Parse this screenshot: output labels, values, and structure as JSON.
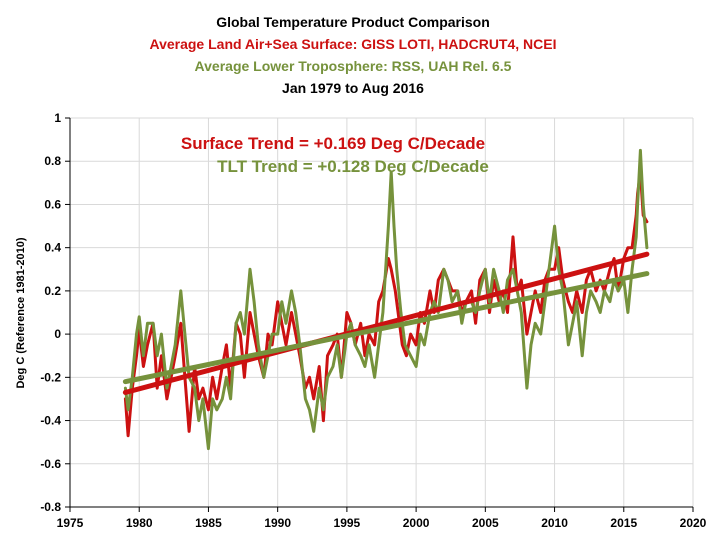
{
  "chart_data": {
    "type": "line",
    "title": "Global Temperature Product Comparison",
    "subtitle_surface": "Average Land Air+Sea Surface: GISS LOTI, HADCRUT4, NCEI",
    "subtitle_tlt": "Average Lower Troposphere: RSS, UAH Rel. 6.5",
    "date_range": "Jan 1979 to Aug 2016",
    "ylabel": "Deg C  (Reference 1981-2010)",
    "xlabel": "",
    "xlim": [
      1975,
      2020
    ],
    "ylim": [
      -0.8,
      1.0
    ],
    "x_ticks": [
      "1975",
      "1980",
      "1985",
      "1990",
      "1995",
      "2000",
      "2005",
      "2010",
      "2015",
      "2020"
    ],
    "y_ticks": [
      "-0.8",
      "-0.6",
      "-0.4",
      "-0.2",
      "0",
      "0.2",
      "0.4",
      "0.6",
      "0.8",
      "1"
    ],
    "grid": true,
    "annotations": {
      "surface_trend": "Surface Trend = +0.169 Deg C/Decade",
      "tlt_trend": "TLT Trend = +0.128 Deg C/Decade"
    },
    "series": [
      {
        "name": "Surface (GISS LOTI, HADCRUT4, NCEI)",
        "color": "#cc1111",
        "trend": {
          "x": [
            1979.0,
            2016.67
          ],
          "y": [
            -0.27,
            0.37
          ]
        },
        "x": [
          1979.0,
          1979.2,
          1979.5,
          1979.8,
          1980.0,
          1980.3,
          1980.6,
          1981.0,
          1981.3,
          1981.6,
          1982.0,
          1982.3,
          1982.6,
          1983.0,
          1983.3,
          1983.6,
          1984.0,
          1984.3,
          1984.6,
          1985.0,
          1985.3,
          1985.6,
          1986.0,
          1986.3,
          1986.6,
          1987.0,
          1987.3,
          1987.6,
          1988.0,
          1988.3,
          1988.6,
          1989.0,
          1989.3,
          1989.6,
          1990.0,
          1990.3,
          1990.6,
          1991.0,
          1991.3,
          1991.6,
          1992.0,
          1992.3,
          1992.6,
          1993.0,
          1993.3,
          1993.6,
          1994.0,
          1994.3,
          1994.6,
          1995.0,
          1995.3,
          1995.6,
          1996.0,
          1996.3,
          1996.6,
          1997.0,
          1997.3,
          1997.6,
          1998.0,
          1998.2,
          1998.5,
          1998.8,
          1999.0,
          1999.3,
          1999.6,
          2000.0,
          2000.3,
          2000.6,
          2001.0,
          2001.3,
          2001.6,
          2002.0,
          2002.3,
          2002.6,
          2003.0,
          2003.3,
          2003.6,
          2004.0,
          2004.3,
          2004.6,
          2005.0,
          2005.3,
          2005.6,
          2006.0,
          2006.3,
          2006.6,
          2007.0,
          2007.3,
          2007.6,
          2008.0,
          2008.3,
          2008.6,
          2009.0,
          2009.3,
          2009.6,
          2010.0,
          2010.3,
          2010.6,
          2011.0,
          2011.3,
          2011.6,
          2012.0,
          2012.3,
          2012.6,
          2013.0,
          2013.3,
          2013.6,
          2014.0,
          2014.3,
          2014.6,
          2015.0,
          2015.3,
          2015.6,
          2015.9,
          2016.0,
          2016.2,
          2016.4,
          2016.67
        ],
        "values": [
          -0.3,
          -0.47,
          -0.25,
          -0.1,
          0.02,
          -0.15,
          -0.05,
          0.05,
          -0.25,
          -0.1,
          -0.3,
          -0.2,
          -0.1,
          0.05,
          -0.2,
          -0.45,
          -0.15,
          -0.3,
          -0.25,
          -0.35,
          -0.2,
          -0.3,
          -0.15,
          -0.05,
          -0.25,
          0.05,
          0.0,
          -0.2,
          0.1,
          0.0,
          -0.1,
          -0.2,
          0.0,
          -0.05,
          0.15,
          0.05,
          -0.05,
          0.1,
          0.0,
          -0.1,
          -0.25,
          -0.2,
          -0.3,
          -0.15,
          -0.4,
          -0.1,
          -0.05,
          0.0,
          -0.2,
          0.1,
          0.05,
          -0.05,
          0.05,
          -0.1,
          0.0,
          -0.05,
          0.15,
          0.2,
          0.35,
          0.3,
          0.2,
          0.05,
          -0.05,
          -0.1,
          0.0,
          -0.05,
          0.1,
          0.05,
          0.2,
          0.1,
          0.25,
          0.3,
          0.25,
          0.2,
          0.2,
          0.1,
          0.15,
          0.2,
          0.05,
          0.25,
          0.3,
          0.1,
          0.25,
          0.15,
          0.2,
          0.1,
          0.45,
          0.2,
          0.25,
          0.0,
          0.1,
          0.2,
          0.1,
          0.25,
          0.3,
          0.3,
          0.4,
          0.25,
          0.15,
          0.1,
          0.2,
          0.1,
          0.25,
          0.3,
          0.2,
          0.25,
          0.2,
          0.3,
          0.35,
          0.2,
          0.35,
          0.4,
          0.4,
          0.55,
          0.65,
          0.75,
          0.55,
          0.52
        ]
      },
      {
        "name": "Lower Troposphere (RSS, UAH Rel. 6.5)",
        "color": "#76923c",
        "trend": {
          "x": [
            1979.0,
            2016.67
          ],
          "y": [
            -0.22,
            0.28
          ]
        },
        "x": [
          1979.0,
          1979.2,
          1979.5,
          1979.8,
          1980.0,
          1980.3,
          1980.6,
          1981.0,
          1981.3,
          1981.6,
          1982.0,
          1982.3,
          1982.6,
          1983.0,
          1983.3,
          1983.6,
          1984.0,
          1984.3,
          1984.6,
          1985.0,
          1985.3,
          1985.6,
          1986.0,
          1986.3,
          1986.6,
          1987.0,
          1987.3,
          1987.6,
          1988.0,
          1988.3,
          1988.6,
          1989.0,
          1989.3,
          1989.6,
          1990.0,
          1990.3,
          1990.6,
          1991.0,
          1991.3,
          1991.6,
          1992.0,
          1992.3,
          1992.6,
          1993.0,
          1993.3,
          1993.6,
          1994.0,
          1994.3,
          1994.6,
          1995.0,
          1995.3,
          1995.6,
          1996.0,
          1996.3,
          1996.6,
          1997.0,
          1997.3,
          1997.6,
          1998.0,
          1998.2,
          1998.4,
          1998.6,
          1998.9,
          1999.2,
          1999.6,
          2000.0,
          2000.3,
          2000.6,
          2001.0,
          2001.3,
          2001.6,
          2002.0,
          2002.3,
          2002.6,
          2003.0,
          2003.3,
          2003.6,
          2004.0,
          2004.3,
          2004.6,
          2005.0,
          2005.3,
          2005.6,
          2006.0,
          2006.3,
          2006.6,
          2007.0,
          2007.3,
          2007.6,
          2008.0,
          2008.3,
          2008.6,
          2009.0,
          2009.3,
          2009.6,
          2010.0,
          2010.3,
          2010.6,
          2011.0,
          2011.3,
          2011.6,
          2012.0,
          2012.3,
          2012.6,
          2013.0,
          2013.3,
          2013.6,
          2014.0,
          2014.3,
          2014.6,
          2015.0,
          2015.3,
          2015.6,
          2015.9,
          2016.0,
          2016.2,
          2016.4,
          2016.67
        ],
        "values": [
          -0.25,
          -0.35,
          -0.2,
          0.0,
          0.08,
          -0.1,
          0.05,
          0.05,
          -0.1,
          0.0,
          -0.25,
          -0.15,
          -0.05,
          0.2,
          0.0,
          -0.2,
          -0.25,
          -0.4,
          -0.3,
          -0.53,
          -0.3,
          -0.35,
          -0.3,
          -0.2,
          -0.3,
          0.05,
          0.1,
          0.0,
          0.3,
          0.15,
          -0.05,
          -0.2,
          -0.1,
          0.0,
          0.0,
          0.15,
          0.05,
          0.2,
          0.1,
          -0.05,
          -0.3,
          -0.35,
          -0.45,
          -0.25,
          -0.35,
          -0.2,
          -0.15,
          -0.05,
          -0.2,
          0.0,
          0.05,
          -0.05,
          -0.1,
          -0.15,
          -0.05,
          -0.2,
          -0.05,
          0.1,
          0.5,
          0.75,
          0.5,
          0.3,
          0.1,
          -0.05,
          -0.1,
          -0.15,
          0.0,
          -0.05,
          0.1,
          0.15,
          0.1,
          0.3,
          0.25,
          0.15,
          0.2,
          0.05,
          0.15,
          0.15,
          0.1,
          0.2,
          0.3,
          0.15,
          0.3,
          0.2,
          0.1,
          0.25,
          0.3,
          0.2,
          0.1,
          -0.25,
          -0.05,
          0.05,
          0.0,
          0.15,
          0.3,
          0.5,
          0.3,
          0.2,
          -0.05,
          0.05,
          0.15,
          -0.1,
          0.1,
          0.2,
          0.15,
          0.1,
          0.2,
          0.15,
          0.25,
          0.2,
          0.25,
          0.1,
          0.3,
          0.45,
          0.6,
          0.85,
          0.6,
          0.4
        ]
      }
    ]
  }
}
